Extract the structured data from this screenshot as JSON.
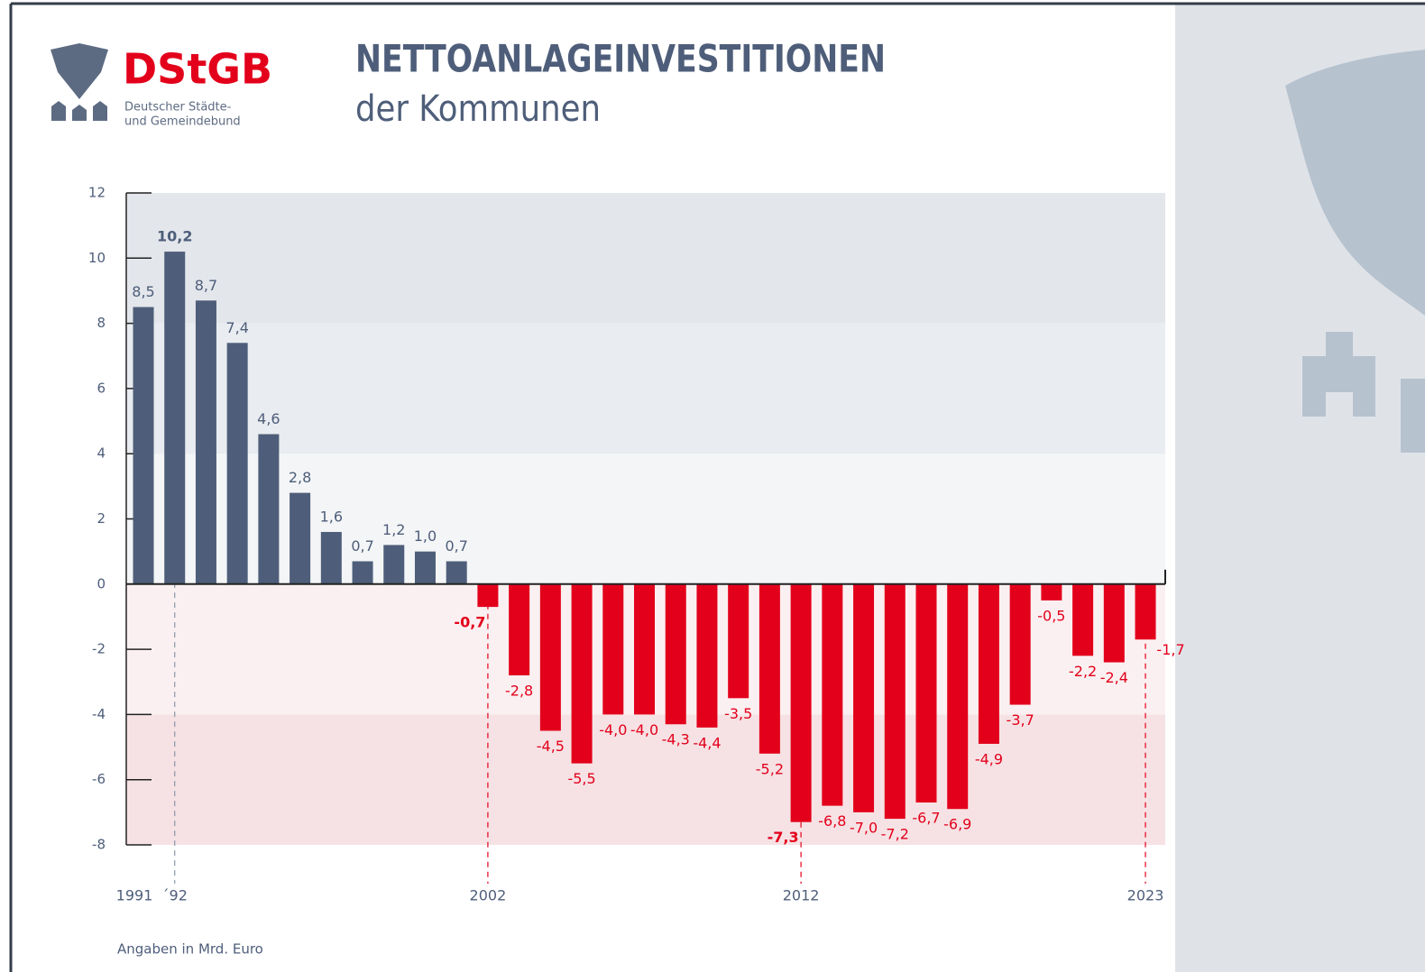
{
  "logo": {
    "name": "DStGB",
    "line1": "Deutscher Städte-",
    "line2": "und Gemeindebund"
  },
  "chart_data": {
    "type": "bar",
    "title": "NETTOANLAGEINVESTITIONEN",
    "subtitle": "der Kommunen",
    "note": "Angaben in Mrd. Euro",
    "categories": [
      "1991",
      "´92",
      null,
      null,
      null,
      null,
      null,
      null,
      null,
      null,
      null,
      "2002",
      null,
      null,
      null,
      null,
      null,
      null,
      null,
      null,
      null,
      "2012",
      null,
      null,
      null,
      null,
      null,
      null,
      null,
      null,
      null,
      null,
      "2023"
    ],
    "values": [
      8.5,
      10.2,
      8.7,
      7.4,
      4.6,
      2.8,
      1.6,
      0.7,
      1.2,
      1.0,
      0.7,
      -0.7,
      -2.8,
      -4.5,
      -5.5,
      -4.0,
      -4.0,
      -4.3,
      -4.4,
      -3.5,
      -5.2,
      -7.3,
      -6.8,
      -7.0,
      -7.2,
      -6.7,
      -6.9,
      -4.9,
      -3.7,
      -0.5,
      -2.2,
      -2.4,
      -1.7
    ],
    "value_labels": [
      "8,5",
      "10,2",
      "8,7",
      "7,4",
      "4,6",
      "2,8",
      "1,6",
      "0,7",
      "1,2",
      "1,0",
      "0,7",
      "-0,7",
      "-2,8",
      "-4,5",
      "-5,5",
      "-4,0",
      "-4,0",
      "-4,3",
      "-4,4",
      "-3,5",
      "-5,2",
      "-7,3",
      "-6,8",
      "-7,0",
      "-7,2",
      "-6,7",
      "-6,9",
      "-4,9",
      "-3,7",
      "-0,5",
      "-2,2",
      "-2,4",
      "-1,7"
    ],
    "color": "#4e5e7a",
    "negative_color": "#e3001b",
    "ylim": [
      -8,
      12
    ],
    "yticks": [
      -8,
      -6,
      -4,
      -2,
      0,
      2,
      4,
      6,
      8,
      10,
      12
    ]
  }
}
